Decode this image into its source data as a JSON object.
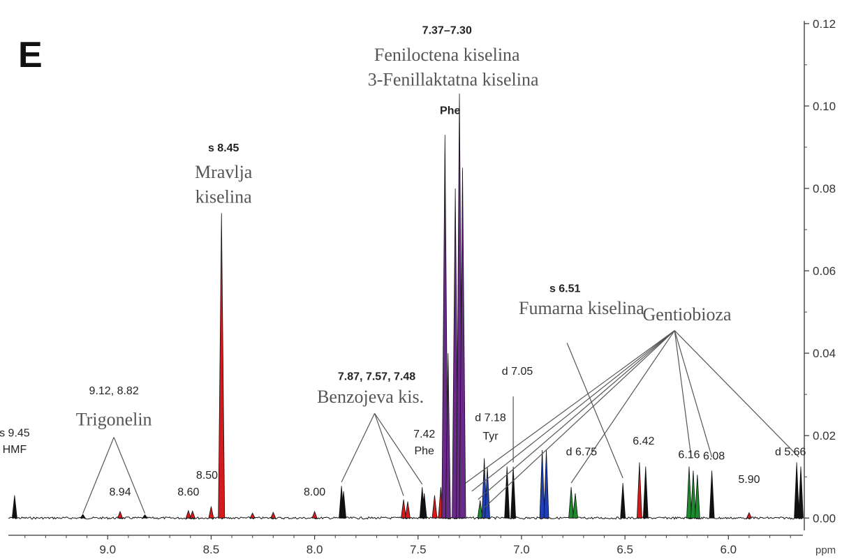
{
  "panel_label": "E",
  "chart_data": {
    "type": "line",
    "x_unit": "ppm",
    "xlim": [
      9.48,
      5.64
    ],
    "ylim": [
      -0.003,
      0.122
    ],
    "x_ticks": [
      {
        "value": 9.0,
        "label": "9.0"
      },
      {
        "value": 8.5,
        "label": "8.5"
      },
      {
        "value": 8.0,
        "label": "8.0"
      },
      {
        "value": 7.5,
        "label": "7.5"
      },
      {
        "value": 7.0,
        "label": "7.0"
      },
      {
        "value": 6.5,
        "label": "6.5"
      },
      {
        "value": 6.0,
        "label": "6.0"
      }
    ],
    "y_ticks": [
      {
        "value": 0.0,
        "label": "0.00"
      },
      {
        "value": 0.02,
        "label": "0.02"
      },
      {
        "value": 0.04,
        "label": "0.04"
      },
      {
        "value": 0.06,
        "label": "0.06"
      },
      {
        "value": 0.08,
        "label": "0.08"
      },
      {
        "value": 0.1,
        "label": "0.10"
      },
      {
        "value": 0.12,
        "label": "0.12"
      }
    ],
    "fill_colors": {
      "red": "#d41a1a",
      "purple": "#6a2a8a",
      "blue": "#1f3fb5",
      "green": "#1e8a2e",
      "black": "#111111"
    },
    "peaks": [
      {
        "ppm": 9.45,
        "height": 0.0055,
        "fill": "black"
      },
      {
        "ppm": 9.12,
        "height": 0.0009,
        "fill": "black"
      },
      {
        "ppm": 8.94,
        "height": 0.0016,
        "fill": "red"
      },
      {
        "ppm": 8.82,
        "height": 0.0008,
        "fill": "black"
      },
      {
        "ppm": 8.61,
        "height": 0.0018,
        "fill": "red"
      },
      {
        "ppm": 8.59,
        "height": 0.0017,
        "fill": "red"
      },
      {
        "ppm": 8.5,
        "height": 0.0028,
        "fill": "red"
      },
      {
        "ppm": 8.45,
        "height": 0.074,
        "fill": "red"
      },
      {
        "ppm": 8.3,
        "height": 0.0012,
        "fill": "red"
      },
      {
        "ppm": 8.2,
        "height": 0.0014,
        "fill": "red"
      },
      {
        "ppm": 8.0,
        "height": 0.0016,
        "fill": "red"
      },
      {
        "ppm": 7.87,
        "height": 0.0078,
        "fill": "black"
      },
      {
        "ppm": 7.86,
        "height": 0.0065,
        "fill": "black"
      },
      {
        "ppm": 7.57,
        "height": 0.0045,
        "fill": "red"
      },
      {
        "ppm": 7.55,
        "height": 0.004,
        "fill": "red"
      },
      {
        "ppm": 7.48,
        "height": 0.0075,
        "fill": "black"
      },
      {
        "ppm": 7.47,
        "height": 0.006,
        "fill": "black"
      },
      {
        "ppm": 7.42,
        "height": 0.0055,
        "fill": "red"
      },
      {
        "ppm": 7.39,
        "height": 0.0075,
        "fill": "red"
      },
      {
        "ppm": 7.37,
        "height": 0.093,
        "fill": "purple"
      },
      {
        "ppm": 7.355,
        "height": 0.04,
        "fill": "purple"
      },
      {
        "ppm": 7.32,
        "height": 0.08,
        "fill": "purple"
      },
      {
        "ppm": 7.3,
        "height": 0.103,
        "fill": "purple"
      },
      {
        "ppm": 7.285,
        "height": 0.085,
        "fill": "purple"
      },
      {
        "ppm": 7.2,
        "height": 0.0043,
        "fill": "green"
      },
      {
        "ppm": 7.18,
        "height": 0.0145,
        "fill": "blue"
      },
      {
        "ppm": 7.165,
        "height": 0.0125,
        "fill": "blue"
      },
      {
        "ppm": 7.07,
        "height": 0.0125,
        "fill": "black"
      },
      {
        "ppm": 7.04,
        "height": 0.0125,
        "fill": "black"
      },
      {
        "ppm": 6.9,
        "height": 0.0165,
        "fill": "blue"
      },
      {
        "ppm": 6.88,
        "height": 0.0165,
        "fill": "blue"
      },
      {
        "ppm": 6.76,
        "height": 0.0075,
        "fill": "green"
      },
      {
        "ppm": 6.74,
        "height": 0.006,
        "fill": "green"
      },
      {
        "ppm": 6.51,
        "height": 0.0085,
        "fill": "black"
      },
      {
        "ppm": 6.43,
        "height": 0.0135,
        "fill": "red"
      },
      {
        "ppm": 6.4,
        "height": 0.0125,
        "fill": "black"
      },
      {
        "ppm": 6.19,
        "height": 0.0125,
        "fill": "green"
      },
      {
        "ppm": 6.17,
        "height": 0.0115,
        "fill": "green"
      },
      {
        "ppm": 6.15,
        "height": 0.0105,
        "fill": "green"
      },
      {
        "ppm": 6.08,
        "height": 0.0115,
        "fill": "black"
      },
      {
        "ppm": 5.9,
        "height": 0.0013,
        "fill": "red"
      },
      {
        "ppm": 5.67,
        "height": 0.0135,
        "fill": "black"
      },
      {
        "ppm": 5.65,
        "height": 0.0125,
        "fill": "black"
      }
    ],
    "shift_labels": [
      {
        "id": "hmf-shift",
        "text": "s 9.45",
        "ppm": 9.45,
        "y": 0.0198,
        "bold": false
      },
      {
        "id": "hmf-name",
        "text": "HMF",
        "ppm": 9.45,
        "y": 0.0158,
        "bold": false
      },
      {
        "id": "trigonelin-shifts",
        "text": "9.12, 8.82",
        "ppm": 8.97,
        "y": 0.03,
        "bold": false
      },
      {
        "id": "shift-894",
        "text": "8.94",
        "ppm": 8.94,
        "y": 0.0055,
        "bold": false
      },
      {
        "id": "shift-860",
        "text": "8.60",
        "ppm": 8.61,
        "y": 0.0055,
        "bold": false
      },
      {
        "id": "shift-850",
        "text": "8.50",
        "ppm": 8.52,
        "y": 0.0095,
        "bold": false
      },
      {
        "id": "formic-shift",
        "text": "s 8.45",
        "ppm": 8.44,
        "y": 0.089,
        "bold": true
      },
      {
        "id": "shift-800",
        "text": "8.00",
        "ppm": 8.0,
        "y": 0.0055,
        "bold": false
      },
      {
        "id": "benzoic-shifts",
        "text": "7.87, 7.57, 7.48",
        "ppm": 7.7,
        "y": 0.0335,
        "bold": true
      },
      {
        "id": "shift-742",
        "text": "7.42",
        "ppm": 7.47,
        "y": 0.0195,
        "bold": false
      },
      {
        "id": "phe-742",
        "text": "Phe",
        "ppm": 7.47,
        "y": 0.0155,
        "bold": false
      },
      {
        "id": "phe-shifts",
        "text": "7.37–7.30",
        "ppm": 7.36,
        "y": 0.1175,
        "bold": true
      },
      {
        "id": "phe-main",
        "text": "Phe",
        "ppm": 7.345,
        "y": 0.098,
        "bold": true
      },
      {
        "id": "tyr-shift",
        "text": "d 7.18",
        "ppm": 7.15,
        "y": 0.0235,
        "bold": false
      },
      {
        "id": "tyr-name",
        "text": "Tyr",
        "ppm": 7.15,
        "y": 0.019,
        "bold": false
      },
      {
        "id": "shift-705",
        "text": "d 7.05",
        "ppm": 7.02,
        "y": 0.0348,
        "bold": false
      },
      {
        "id": "fumaric-shift",
        "text": "s 6.51",
        "ppm": 6.79,
        "y": 0.0548,
        "bold": true
      },
      {
        "id": "shift-675",
        "text": "d 6.75",
        "ppm": 6.71,
        "y": 0.0152,
        "bold": false
      },
      {
        "id": "shift-642",
        "text": "6.42",
        "ppm": 6.41,
        "y": 0.0178,
        "bold": false
      },
      {
        "id": "shift-616",
        "text": "6.16",
        "ppm": 6.19,
        "y": 0.0145,
        "bold": false
      },
      {
        "id": "shift-608",
        "text": "6.08",
        "ppm": 6.07,
        "y": 0.0142,
        "bold": false
      },
      {
        "id": "shift-590",
        "text": "5.90",
        "ppm": 5.9,
        "y": 0.0085,
        "bold": false
      },
      {
        "id": "shift-566",
        "text": "d 5.66",
        "ppm": 5.7,
        "y": 0.0152,
        "bold": false
      }
    ],
    "compound_labels": [
      {
        "id": "trigonelin",
        "text": "Trigonelin",
        "ppm": 8.97,
        "y": 0.0225
      },
      {
        "id": "formic-1",
        "text": "Mravlja",
        "ppm": 8.44,
        "y": 0.0825
      },
      {
        "id": "formic-2",
        "text": "kiselina",
        "ppm": 8.44,
        "y": 0.0765
      },
      {
        "id": "benzoic",
        "text": "Benzojeva kis.",
        "ppm": 7.73,
        "y": 0.028
      },
      {
        "id": "phenylacetic",
        "text": "Feniloctena kiselina",
        "ppm": 7.36,
        "y": 0.111
      },
      {
        "id": "phenyllactic",
        "text": "3-Fenillaktatna kiselina",
        "ppm": 7.33,
        "y": 0.105
      },
      {
        "id": "fumaric",
        "text": "Fumarna kiselina",
        "ppm": 6.71,
        "y": 0.0495
      },
      {
        "id": "gentiobiose",
        "text": "Gentiobioza",
        "ppm": 6.2,
        "y": 0.048
      }
    ],
    "leader_lines": [
      {
        "from": [
          9.12,
          0.0011
        ],
        "to": [
          8.97,
          0.0196
        ]
      },
      {
        "from": [
          8.82,
          0.0011
        ],
        "to": [
          8.97,
          0.0196
        ]
      },
      {
        "from": [
          7.87,
          0.0087
        ],
        "to": [
          7.71,
          0.0254
        ]
      },
      {
        "from": [
          7.57,
          0.0054
        ],
        "to": [
          7.71,
          0.0254
        ]
      },
      {
        "from": [
          7.48,
          0.0082
        ],
        "to": [
          7.71,
          0.0254
        ]
      },
      {
        "from": [
          6.51,
          0.0097
        ],
        "to": [
          6.78,
          0.0425
        ]
      },
      {
        "from": [
          7.04,
          0.0135
        ],
        "to": [
          7.04,
          0.0295
        ]
      },
      {
        "from": [
          7.27,
          0.0085
        ],
        "to": [
          6.26,
          0.0455
        ]
      },
      {
        "from": [
          7.24,
          0.0065
        ],
        "to": [
          6.26,
          0.0455
        ]
      },
      {
        "from": [
          7.21,
          0.0045
        ],
        "to": [
          6.26,
          0.0455
        ]
      },
      {
        "from": [
          7.18,
          0.0025
        ],
        "to": [
          6.26,
          0.0455
        ]
      },
      {
        "from": [
          6.76,
          0.0085
        ],
        "to": [
          6.26,
          0.0455
        ]
      },
      {
        "from": [
          6.18,
          0.0148
        ],
        "to": [
          6.26,
          0.0455
        ]
      },
      {
        "from": [
          6.08,
          0.0148
        ],
        "to": [
          6.26,
          0.0455
        ]
      },
      {
        "from": [
          5.66,
          0.0148
        ],
        "to": [
          6.26,
          0.0455
        ]
      }
    ]
  }
}
